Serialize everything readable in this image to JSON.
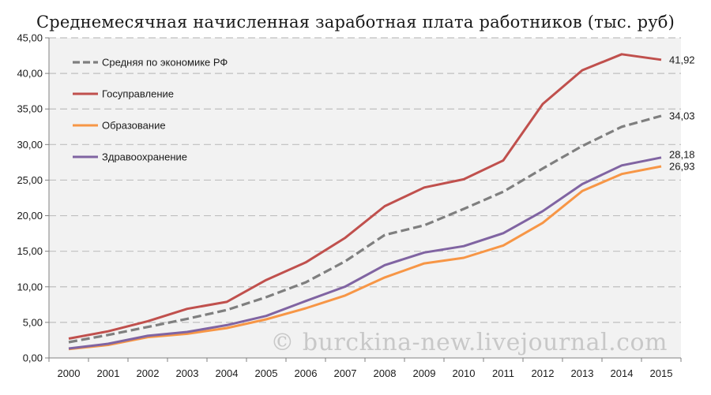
{
  "chart_data": {
    "type": "line",
    "title": "Среднемесячная начисленная заработная плата работников (тыс. руб)",
    "xlabel": "",
    "ylabel": "",
    "categories": [
      "2000",
      "2001",
      "2002",
      "2003",
      "2004",
      "2005",
      "2006",
      "2007",
      "2008",
      "2009",
      "2010",
      "2011",
      "2012",
      "2013",
      "2014",
      "2015"
    ],
    "y_ticks": [
      "0,00",
      "5,00",
      "10,00",
      "15,00",
      "20,00",
      "25,00",
      "30,00",
      "35,00",
      "40,00",
      "45,00"
    ],
    "ylim": [
      0,
      45
    ],
    "grid": true,
    "legend_position": "top-left",
    "series": [
      {
        "name": "Средняя по экономике РФ",
        "color": "#7f7f7f",
        "dash": true,
        "values": [
          2.22,
          3.24,
          4.36,
          5.5,
          6.74,
          8.55,
          10.63,
          13.59,
          17.29,
          18.64,
          20.95,
          23.37,
          26.63,
          29.79,
          32.5,
          34.03
        ],
        "end_label": "34,03"
      },
      {
        "name": "Госуправление",
        "color": "#c0504d",
        "dash": false,
        "values": [
          2.71,
          3.75,
          5.17,
          6.91,
          7.88,
          10.96,
          13.43,
          16.89,
          21.34,
          23.96,
          25.12,
          27.76,
          35.7,
          40.45,
          42.69,
          41.92
        ],
        "end_label": "41,92"
      },
      {
        "name": "Образование",
        "color": "#f79646",
        "dash": false,
        "values": [
          1.24,
          1.83,
          2.93,
          3.39,
          4.2,
          5.43,
          6.98,
          8.78,
          11.32,
          13.29,
          14.08,
          15.81,
          18.99,
          23.46,
          25.86,
          26.93
        ],
        "end_label": "26,93"
      },
      {
        "name": "Здравоохранение",
        "color": "#8064a2",
        "dash": false,
        "values": [
          1.33,
          2.0,
          3.12,
          3.66,
          4.61,
          5.91,
          8.0,
          10.03,
          13.05,
          14.82,
          15.72,
          17.54,
          20.64,
          24.44,
          27.07,
          28.18
        ],
        "end_label": "28,18"
      }
    ]
  },
  "watermark": "© burckina-new.livejournal.com"
}
